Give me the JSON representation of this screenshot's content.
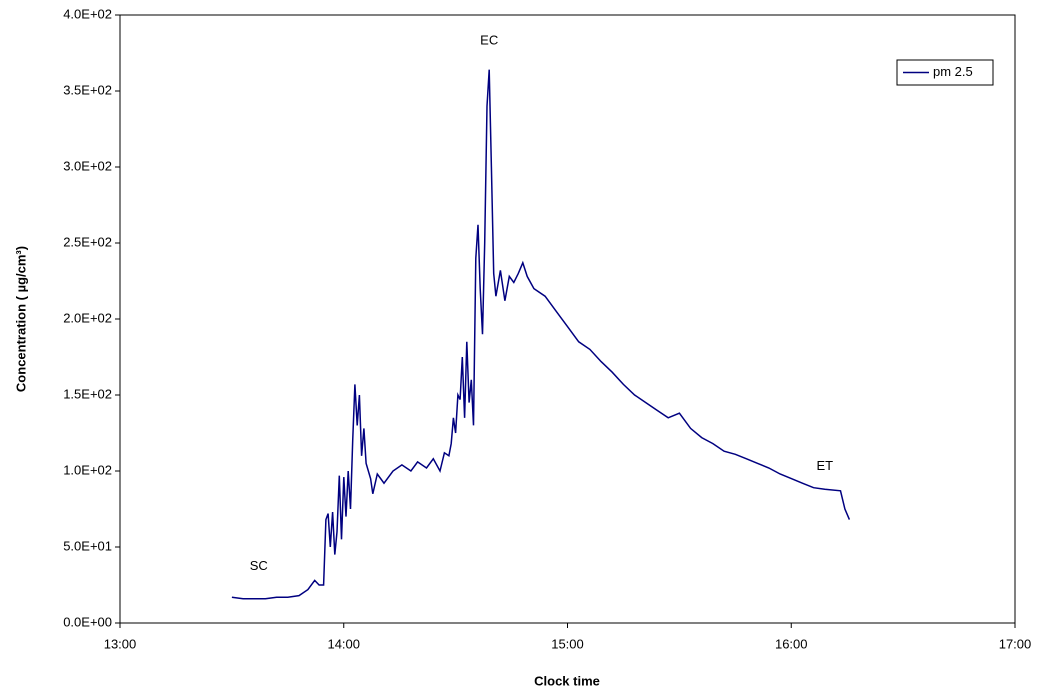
{
  "chart_data": {
    "type": "line",
    "x_label": "Clock time",
    "y_label": "Concentration ( µg/cm³)",
    "xlim": [
      13,
      17
    ],
    "xticks": [
      {
        "value": 13,
        "label": "13:00"
      },
      {
        "value": 14,
        "label": "14:00"
      },
      {
        "value": 15,
        "label": "15:00"
      },
      {
        "value": 16,
        "label": "16:00"
      },
      {
        "value": 17,
        "label": "17:00"
      }
    ],
    "ylim": [
      0,
      400
    ],
    "yticks": [
      {
        "value": 0,
        "label": "0.0E+00"
      },
      {
        "value": 50,
        "label": "5.0E+01"
      },
      {
        "value": 100,
        "label": "1.0E+02"
      },
      {
        "value": 150,
        "label": "1.5E+02"
      },
      {
        "value": 200,
        "label": "2.0E+02"
      },
      {
        "value": 250,
        "label": "2.5E+02"
      },
      {
        "value": 300,
        "label": "3.0E+02"
      },
      {
        "value": 350,
        "label": "3.5E+02"
      },
      {
        "value": 400,
        "label": "4.0E+02"
      }
    ],
    "legend": "top-right",
    "x": [
      13.5,
      13.55,
      13.6,
      13.65,
      13.7,
      13.75,
      13.8,
      13.84,
      13.87,
      13.89,
      13.91,
      13.92,
      13.93,
      13.94,
      13.95,
      13.96,
      13.97,
      13.98,
      13.99,
      14.0,
      14.01,
      14.02,
      14.03,
      14.04,
      14.05,
      14.06,
      14.07,
      14.08,
      14.09,
      14.1,
      14.12,
      14.13,
      14.15,
      14.18,
      14.22,
      14.26,
      14.3,
      14.33,
      14.37,
      14.4,
      14.43,
      14.45,
      14.47,
      14.48,
      14.49,
      14.5,
      14.51,
      14.52,
      14.53,
      14.54,
      14.55,
      14.56,
      14.57,
      14.58,
      14.59,
      14.6,
      14.61,
      14.62,
      14.63,
      14.64,
      14.65,
      14.66,
      14.67,
      14.68,
      14.7,
      14.72,
      14.74,
      14.76,
      14.78,
      14.8,
      14.82,
      14.85,
      14.9,
      14.95,
      15.0,
      15.05,
      15.1,
      15.15,
      15.2,
      15.25,
      15.3,
      15.35,
      15.4,
      15.45,
      15.5,
      15.55,
      15.6,
      15.65,
      15.7,
      15.75,
      15.8,
      15.85,
      15.9,
      15.95,
      16.0,
      16.05,
      16.1,
      16.15,
      16.22,
      16.24,
      16.26
    ],
    "series": [
      {
        "name": "pm 2.5",
        "color": "#000080",
        "values": [
          17,
          16,
          16,
          16,
          17,
          17,
          18,
          22,
          28,
          25,
          25,
          68,
          72,
          50,
          73,
          45,
          60,
          97,
          55,
          96,
          70,
          100,
          75,
          120,
          157,
          130,
          150,
          110,
          128,
          105,
          95,
          85,
          98,
          92,
          100,
          104,
          100,
          106,
          102,
          108,
          100,
          112,
          110,
          118,
          135,
          125,
          150,
          147,
          175,
          135,
          185,
          145,
          160,
          130,
          240,
          262,
          220,
          190,
          250,
          340,
          364,
          300,
          230,
          215,
          232,
          212,
          228,
          224,
          230,
          237,
          228,
          220,
          215,
          205,
          195,
          185,
          180,
          172,
          165,
          157,
          150,
          145,
          140,
          135,
          138,
          128,
          122,
          118,
          113,
          111,
          108,
          105,
          102,
          98,
          95,
          92,
          89,
          88,
          87,
          75,
          68
        ]
      }
    ],
    "annotations": [
      {
        "text": "SC",
        "x": 13.62,
        "y": 37
      },
      {
        "text": "EC",
        "x": 14.65,
        "y": 383
      },
      {
        "text": "ET",
        "x": 16.15,
        "y": 103
      }
    ]
  }
}
